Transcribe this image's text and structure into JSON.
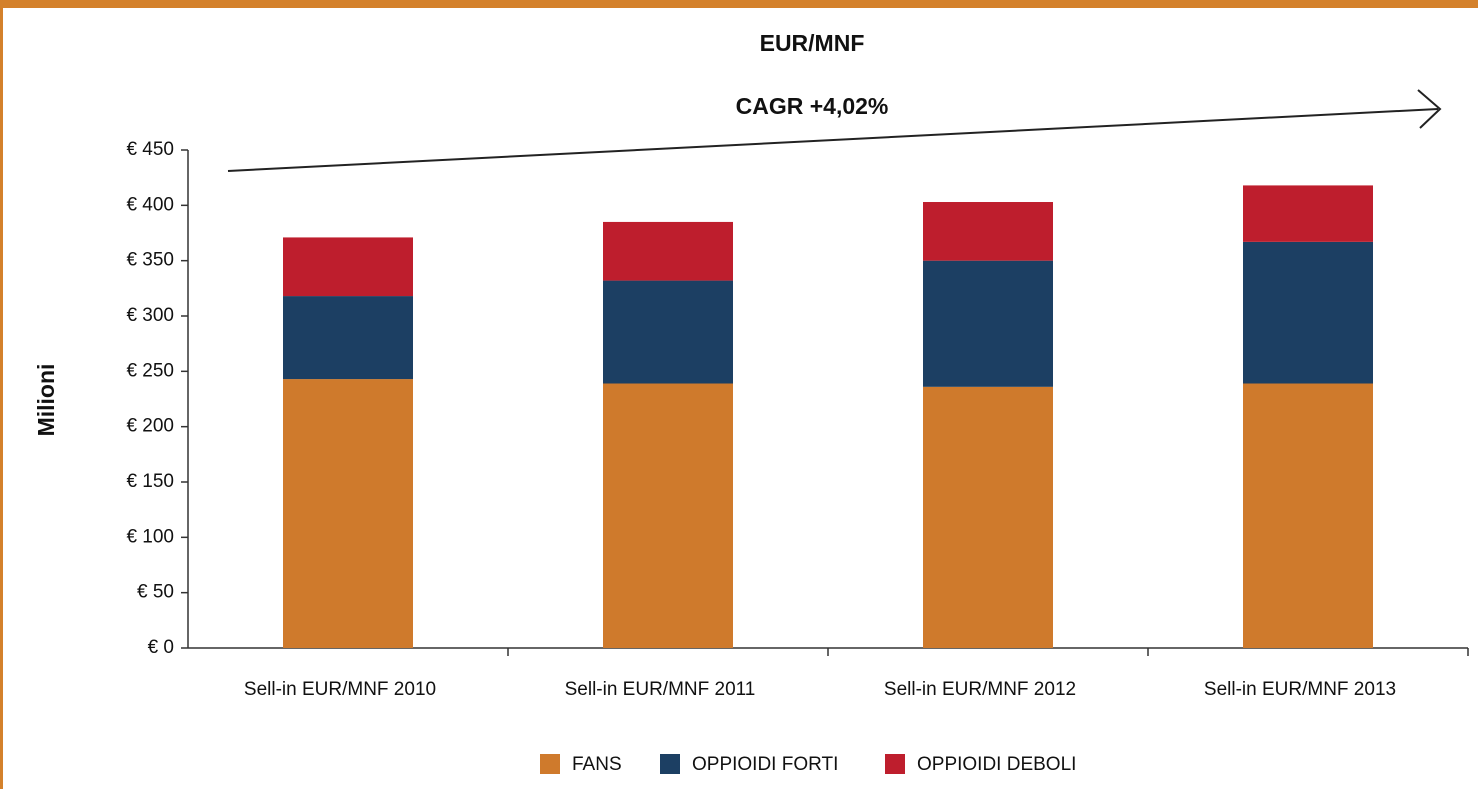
{
  "chart_data": {
    "type": "stacked_bar",
    "title": "EUR/MNF",
    "annotation": "CAGR +4,02%",
    "ylabel": "Milioni",
    "categories": [
      "Sell-in EUR/MNF 2010",
      "Sell-in EUR/MNF 2011",
      "Sell-in EUR/MNF 2012",
      "Sell-in EUR/MNF 2013"
    ],
    "series": [
      {
        "name": "FANS",
        "color": "#cf7a2c",
        "values": [
          243,
          239,
          236,
          239
        ]
      },
      {
        "name": "OPPIOIDI FORTI",
        "color": "#1c3f63",
        "values": [
          75,
          93,
          114,
          128
        ]
      },
      {
        "name": "OPPIOIDI DEBOLI",
        "color": "#be1e2d",
        "values": [
          53,
          53,
          53,
          51
        ]
      }
    ],
    "ylim": [
      0,
      450
    ],
    "yticks": [
      {
        "value": 0,
        "label": "€ 0"
      },
      {
        "value": 50,
        "label": "€ 50"
      },
      {
        "value": 100,
        "label": "€ 100"
      },
      {
        "value": 150,
        "label": "€ 150"
      },
      {
        "value": 200,
        "label": "€ 200"
      },
      {
        "value": 250,
        "label": "€ 250"
      },
      {
        "value": 300,
        "label": "€ 300"
      },
      {
        "value": 350,
        "label": "€ 350"
      },
      {
        "value": 400,
        "label": "€ 400"
      },
      {
        "value": 450,
        "label": "€ 450"
      }
    ],
    "legend": "bottom"
  }
}
